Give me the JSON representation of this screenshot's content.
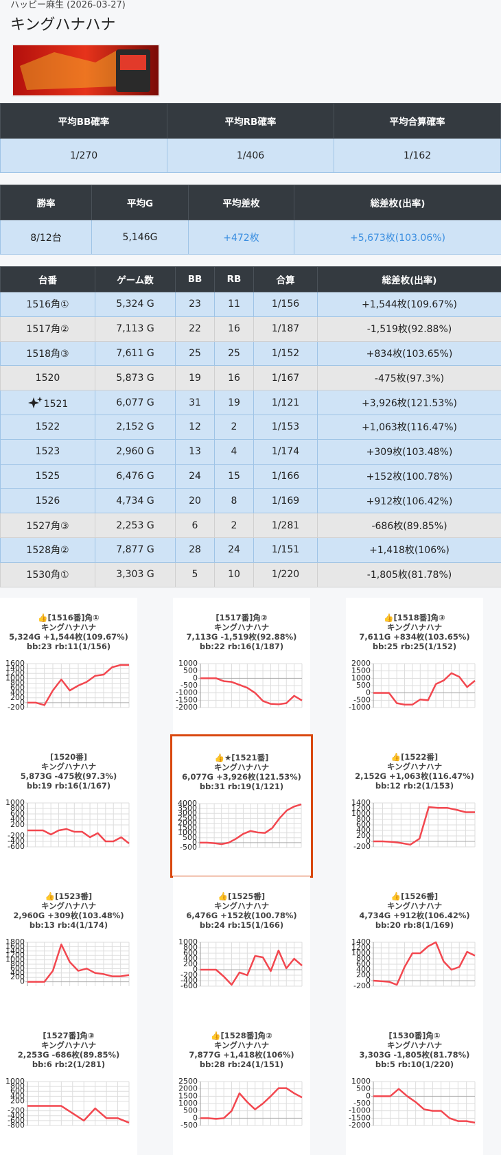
{
  "header": {
    "store": "ハッピー麻生 (2026-03-27)",
    "title": "キングハナハナ"
  },
  "summary_1": {
    "headers": [
      "平均BB確率",
      "平均RB確率",
      "平均合算確率"
    ],
    "values": [
      "1/270",
      "1/406",
      "1/162"
    ]
  },
  "summary_2": {
    "headers": [
      "勝率",
      "平均G",
      "平均差枚",
      "総差枚(出率)"
    ],
    "values": [
      "8/12台",
      "5,146G",
      "+472枚",
      "+5,673枚(103.06%)"
    ]
  },
  "table": {
    "headers": [
      "台番",
      "ゲーム数",
      "BB",
      "RB",
      "合算",
      "総差枚(出率)"
    ],
    "rows": [
      {
        "cells": [
          "1516角①",
          "5,324 G",
          "23",
          "11",
          "1/156",
          "+1,544枚(109.67%)"
        ]
      },
      {
        "cells": [
          "1517角②",
          "7,113 G",
          "22",
          "16",
          "1/187",
          "-1,519枚(92.88%)"
        ]
      },
      {
        "cells": [
          "1518角③",
          "7,611 G",
          "25",
          "25",
          "1/152",
          "+834枚(103.65%)"
        ]
      },
      {
        "cells": [
          "1520",
          "5,873 G",
          "19",
          "16",
          "1/167",
          "-475枚(97.3%)"
        ]
      },
      {
        "cells": [
          "1521",
          "6,077 G",
          "31",
          "19",
          "1/121",
          "+3,926枚(121.53%)"
        ],
        "featured": true
      },
      {
        "cells": [
          "1522",
          "2,152 G",
          "12",
          "2",
          "1/153",
          "+1,063枚(116.47%)"
        ]
      },
      {
        "cells": [
          "1523",
          "2,960 G",
          "13",
          "4",
          "1/174",
          "+309枚(103.48%)"
        ]
      },
      {
        "cells": [
          "1525",
          "6,476 G",
          "24",
          "15",
          "1/166",
          "+152枚(100.78%)"
        ]
      },
      {
        "cells": [
          "1526",
          "4,734 G",
          "20",
          "8",
          "1/169",
          "+912枚(106.42%)"
        ]
      },
      {
        "cells": [
          "1527角③",
          "2,253 G",
          "6",
          "2",
          "1/281",
          "-686枚(89.85%)"
        ]
      },
      {
        "cells": [
          "1528角②",
          "7,877 G",
          "28",
          "24",
          "1/151",
          "+1,418枚(106%)"
        ]
      },
      {
        "cells": [
          "1530角①",
          "3,303 G",
          "5",
          "10",
          "1/220",
          "-1,805枚(81.78%)"
        ]
      }
    ]
  },
  "charts": [
    {
      "type": "line",
      "lines": [
        "👍[1516番]角①",
        "キングハナハナ",
        "5,324G +1,544枚(109.67%)",
        "bb:23 rb:11(1/156)"
      ],
      "color": "#f2474f",
      "ylim": [
        -200,
        1600
      ],
      "yticks": [
        -200,
        0,
        200,
        400,
        600,
        800,
        1000,
        1200,
        1400,
        1600
      ],
      "values": [
        0,
        0,
        -100,
        500,
        950,
        500,
        700,
        850,
        1100,
        1150,
        1450,
        1544,
        1544
      ]
    },
    {
      "type": "line",
      "lines": [
        "[1517番]角②",
        "キングハナハナ",
        "7,113G -1,519枚(92.88%)",
        "bb:22 rb:16(1/187)"
      ],
      "color": "#f2474f",
      "ylim": [
        -2000,
        1000
      ],
      "yticks": [
        -2000,
        -1500,
        -1000,
        -500,
        0,
        500,
        1000
      ],
      "values": [
        0,
        0,
        0,
        -200,
        -250,
        -450,
        -650,
        -1000,
        -1550,
        -1750,
        -1780,
        -1700,
        -1200,
        -1519
      ]
    },
    {
      "type": "line",
      "lines": [
        "👍[1518番]角③",
        "キングハナハナ",
        "7,611G +834枚(103.65%)",
        "bb:25 rb:25(1/152)"
      ],
      "color": "#f2474f",
      "ylim": [
        -1000,
        2000
      ],
      "yticks": [
        -1000,
        -500,
        0,
        500,
        1000,
        1500,
        2000
      ],
      "values": [
        0,
        0,
        0,
        -700,
        -800,
        -800,
        -450,
        -500,
        600,
        850,
        1350,
        1100,
        400,
        834
      ]
    },
    {
      "type": "line",
      "lines": [
        "[1520番]",
        "キングハナハナ",
        "5,873G -475枚(97.3%)",
        "bb:19 rb:16(1/167)"
      ],
      "color": "#f2474f",
      "ylim": [
        -600,
        1000
      ],
      "yticks": [
        -600,
        -400,
        -200,
        200,
        400,
        600,
        800,
        1000
      ],
      "values": [
        0,
        0,
        0,
        -150,
        0,
        50,
        -50,
        -50,
        -250,
        -100,
        -400,
        -400,
        -250,
        -475
      ]
    },
    {
      "type": "line",
      "lines": [
        "👍★[1521番]",
        "キングハナハナ",
        "6,077G +3,926枚(121.53%)",
        "bb:31 rb:19(1/121)"
      ],
      "color": "#f2474f",
      "highlight": true,
      "ylim": [
        -500,
        4000
      ],
      "yticks": [
        -500,
        0,
        500,
        1000,
        1500,
        2000,
        2500,
        3000,
        3500,
        4000
      ],
      "values": [
        0,
        0,
        -50,
        -150,
        0,
        400,
        900,
        1200,
        1050,
        1000,
        1500,
        2500,
        3300,
        3700,
        3926
      ]
    },
    {
      "type": "line",
      "lines": [
        "👍[1522番]",
        "キングハナハナ",
        "2,152G +1,063枚(116.47%)",
        "bb:12 rb:2(1/153)"
      ],
      "color": "#f2474f",
      "ylim": [
        -200,
        1400
      ],
      "yticks": [
        -200,
        0,
        200,
        400,
        600,
        800,
        1000,
        1200,
        1400
      ],
      "values": [
        0,
        0,
        -20,
        -60,
        -120,
        100,
        1250,
        1220,
        1220,
        1150,
        1063,
        1063
      ]
    },
    {
      "type": "line",
      "lines": [
        "👍[1523番]",
        "キングハナハナ",
        "2,960G +309枚(103.48%)",
        "bb:13 rb:4(1/174)"
      ],
      "color": "#f2474f",
      "ylim": [
        -200,
        1800
      ],
      "yticks": [
        0,
        200,
        400,
        600,
        800,
        1000,
        1200,
        1400,
        1600,
        1800
      ],
      "values": [
        0,
        0,
        0,
        500,
        1700,
        900,
        500,
        600,
        400,
        350,
        250,
        250,
        309
      ]
    },
    {
      "type": "line",
      "lines": [
        "👍[1525番]",
        "キングハナハナ",
        "6,476G +152枚(100.78%)",
        "bb:24 rb:15(1/166)"
      ],
      "color": "#f2474f",
      "ylim": [
        -600,
        1000
      ],
      "yticks": [
        -600,
        -400,
        -200,
        0,
        200,
        400,
        600,
        800,
        1000
      ],
      "values": [
        0,
        0,
        0,
        -250,
        -550,
        -100,
        -200,
        500,
        450,
        -50,
        700,
        50,
        400,
        152
      ]
    },
    {
      "type": "line",
      "lines": [
        "👍[1526番]",
        "キングハナハナ",
        "4,734G +912枚(106.42%)",
        "bb:20 rb:8(1/169)"
      ],
      "color": "#f2474f",
      "ylim": [
        -200,
        1400
      ],
      "yticks": [
        -200,
        0,
        200,
        400,
        600,
        800,
        1000,
        1200,
        1400
      ],
      "values": [
        0,
        -20,
        -40,
        -150,
        500,
        1000,
        1000,
        1250,
        1400,
        700,
        400,
        500,
        1050,
        912
      ]
    },
    {
      "type": "line",
      "lines": [
        "[1527番]角③",
        "キングハナハナ",
        "2,253G -686枚(89.85%)",
        "bb:6 rb:2(1/281)"
      ],
      "color": "#f2474f",
      "ylim": [
        -800,
        1000
      ],
      "yticks": [
        -800,
        -600,
        -400,
        -200,
        200,
        400,
        600,
        800,
        1000
      ],
      "values": [
        0,
        0,
        0,
        0,
        -300,
        -600,
        -100,
        -500,
        -500,
        -686
      ]
    },
    {
      "type": "line",
      "lines": [
        "👍[1528番]角②",
        "キングハナハナ",
        "7,877G +1,418枚(106%)",
        "bb:28 rb:24(1/151)"
      ],
      "color": "#f2474f",
      "ylim": [
        -500,
        2500
      ],
      "yticks": [
        -500,
        0,
        500,
        1000,
        1500,
        2000,
        2500
      ],
      "values": [
        0,
        0,
        -50,
        0,
        500,
        1700,
        1100,
        600,
        1000,
        1500,
        2050,
        2050,
        1700,
        1418
      ]
    },
    {
      "type": "line",
      "lines": [
        "[1530番]角①",
        "キングハナハナ",
        "3,303G -1,805枚(81.78%)",
        "bb:5 rb:10(1/220)"
      ],
      "color": "#f2474f",
      "ylim": [
        -2000,
        1000
      ],
      "yticks": [
        -2000,
        -1500,
        -1000,
        -500,
        0,
        500,
        1000
      ],
      "values": [
        0,
        0,
        0,
        500,
        0,
        -400,
        -900,
        -1000,
        -1000,
        -1500,
        -1700,
        -1700,
        -1805
      ]
    }
  ]
}
